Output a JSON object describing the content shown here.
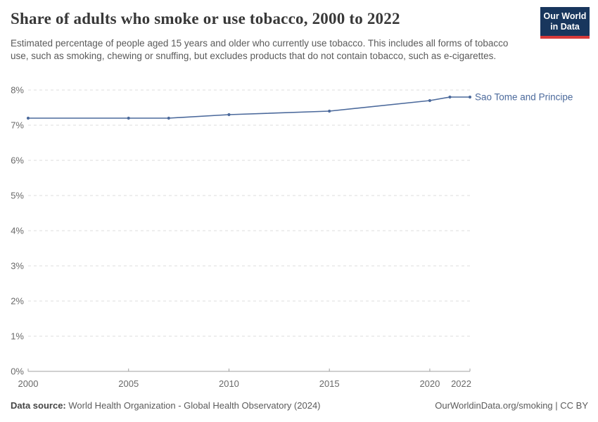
{
  "header": {
    "title": "Share of adults who smoke or use tobacco, 2000 to 2022",
    "subtitle": "Estimated percentage of people aged 15 years and older who currently use tobacco. This includes all forms of tobacco use, such as smoking, chewing or snuffing, but excludes products that do not contain tobacco, such as e-cigarettes.",
    "logo": {
      "line1": "Our World",
      "line2": "in Data",
      "bg_color": "#18365d",
      "stripe_color": "#d73a3a"
    }
  },
  "chart_data": {
    "type": "line",
    "title": "Share of adults who smoke or use tobacco, 2000 to 2022",
    "x": [
      2000,
      2005,
      2007,
      2010,
      2015,
      2020,
      2021,
      2022
    ],
    "series": [
      {
        "name": "Sao Tome and Principe",
        "color": "#4c6a9c",
        "values": [
          7.2,
          7.2,
          7.2,
          7.3,
          7.4,
          7.7,
          7.8,
          7.8
        ]
      }
    ],
    "xlim": [
      2000,
      2022
    ],
    "ylim": [
      0,
      8
    ],
    "xticks": [
      2000,
      2005,
      2010,
      2015,
      2020,
      2022
    ],
    "yticks": [
      0,
      1,
      2,
      3,
      4,
      5,
      6,
      7,
      8
    ],
    "ytick_suffix": "%",
    "grid": "horizontal-dashed",
    "legend_position": "end-of-line",
    "colors": {
      "grid": "#dcdcdc",
      "axis": "#a0a0a0",
      "tick_label": "#696969"
    }
  },
  "footer": {
    "datasource_label": "Data source:",
    "datasource_value": " World Health Organization - Global Health Observatory (2024)",
    "rights": "OurWorldinData.org/smoking | CC BY"
  }
}
